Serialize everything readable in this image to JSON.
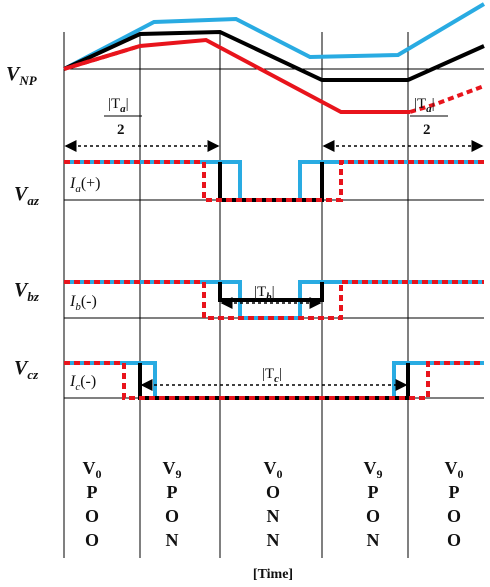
{
  "signals": {
    "vnp": {
      "main": "V",
      "sub": "NP"
    },
    "vaz": {
      "main": "V",
      "sub": "az"
    },
    "vbz": {
      "main": "V",
      "sub": "bz"
    },
    "vcz": {
      "main": "V",
      "sub": "cz"
    }
  },
  "currents": {
    "ia": {
      "main": "I",
      "sub": "a",
      "sign": "(+)"
    },
    "ib": {
      "main": "I",
      "sub": "b",
      "sign": "(-)"
    },
    "ic": {
      "main": "I",
      "sub": "c",
      "sign": "(-)"
    }
  },
  "durations": {
    "ta_left": {
      "text": "|T",
      "sub": "a",
      "close": "|",
      "den": "2"
    },
    "ta_right": {
      "text": "|T",
      "sub": "a",
      "close": "|",
      "den": "2"
    },
    "tb": {
      "text": "|T",
      "sub": "b",
      "close": "|"
    },
    "tc": {
      "text": "|T",
      "sub": "c",
      "close": "|"
    }
  },
  "states": [
    {
      "vector": "V",
      "index": "0",
      "letters": [
        "P",
        "O",
        "O"
      ]
    },
    {
      "vector": "V",
      "index": "9",
      "letters": [
        "P",
        "O",
        "N"
      ]
    },
    {
      "vector": "V",
      "index": "0",
      "letters": [
        "O",
        "N",
        "N"
      ]
    },
    {
      "vector": "V",
      "index": "9",
      "letters": [
        "P",
        "O",
        "N"
      ]
    },
    {
      "vector": "V",
      "index": "0",
      "letters": [
        "P",
        "O",
        "O"
      ]
    }
  ],
  "time_label": "[Time]",
  "colors": {
    "blue": "#29abe2",
    "black": "#000000",
    "red": "#e8141c",
    "line": "#000000"
  }
}
